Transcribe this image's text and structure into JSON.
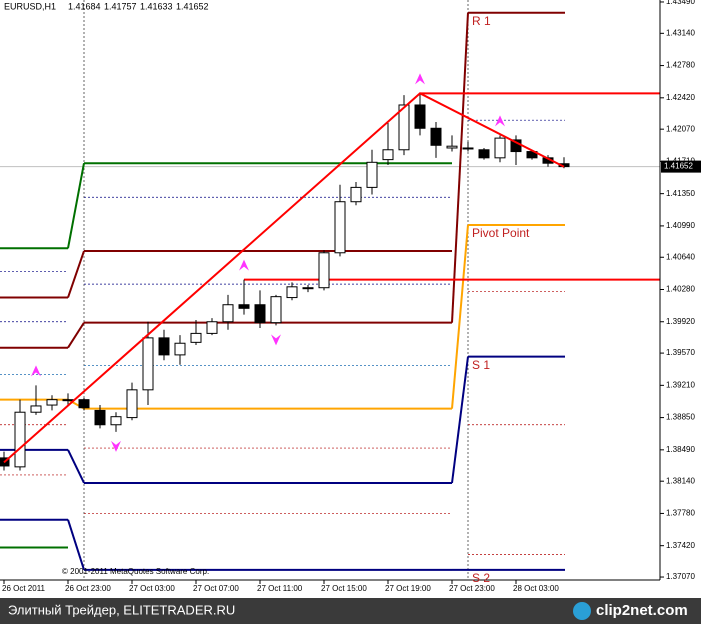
{
  "chart_data": {
    "type": "candlestick",
    "title": "EURUSD,H1",
    "header_ohlc": [
      1.41684,
      1.41757,
      1.41633,
      1.41652
    ],
    "copyright": "© 2001-2011 MetaQuotes Software Corp.",
    "categories": [
      "26 Oct 2011",
      null,
      null,
      null,
      "26 Oct 23:00",
      null,
      null,
      null,
      "27 Oct 03:00",
      null,
      null,
      null,
      "27 Oct 07:00",
      null,
      null,
      null,
      "27 Oct 11:00",
      null,
      null,
      null,
      "27 Oct 15:00",
      null,
      null,
      null,
      "27 Oct 19:00",
      null,
      null,
      null,
      "27 Oct 23:00",
      null,
      null,
      null,
      "28 Oct 03:00",
      null,
      null,
      null
    ],
    "open": [
      1.384,
      1.383,
      1.3891,
      1.3899,
      1.3905,
      1.3905,
      1.3893,
      1.3877,
      1.3885,
      1.3916,
      1.3974,
      1.3955,
      1.3969,
      1.3979,
      1.3992,
      1.4011,
      1.4011,
      1.3991,
      1.4019,
      1.403,
      1.403,
      1.4069,
      1.4126,
      1.4142,
      1.4173,
      1.4184,
      1.4234,
      1.4208,
      1.4186,
      1.4186,
      1.4184,
      1.4175,
      1.4195,
      1.4182,
      1.4175,
      1.41684
    ],
    "high": [
      1.3847,
      1.3905,
      1.3921,
      1.391,
      1.3912,
      1.3907,
      1.3899,
      1.3891,
      1.3924,
      1.3992,
      1.3983,
      1.3977,
      1.3994,
      1.3996,
      1.4022,
      1.4039,
      1.4027,
      1.4022,
      1.4036,
      1.4033,
      1.4072,
      1.4145,
      1.4148,
      1.4184,
      1.4214,
      1.4245,
      1.4247,
      1.4215,
      1.42,
      1.4193,
      1.4186,
      1.42,
      1.42,
      1.4184,
      1.4178,
      1.41757
    ],
    "low": [
      1.3826,
      1.3826,
      1.3888,
      1.3893,
      1.3899,
      1.3893,
      1.3873,
      1.3869,
      1.3882,
      1.3899,
      1.3949,
      1.3944,
      1.3966,
      1.3977,
      1.3983,
      1.4,
      1.3985,
      1.3988,
      1.4016,
      1.4025,
      1.4027,
      1.4065,
      1.4122,
      1.4134,
      1.4167,
      1.4178,
      1.42,
      1.4175,
      1.4182,
      1.4182,
      1.4173,
      1.417,
      1.4167,
      1.4173,
      1.4165,
      1.41633
    ],
    "close": [
      1.3831,
      1.3891,
      1.3898,
      1.3905,
      1.3905,
      1.3896,
      1.3877,
      1.3886,
      1.3916,
      1.3974,
      1.3955,
      1.3968,
      1.3979,
      1.3992,
      1.4011,
      1.4007,
      1.3991,
      1.402,
      1.4031,
      1.403,
      1.4069,
      1.4126,
      1.4142,
      1.417,
      1.4184,
      1.4234,
      1.4208,
      1.4189,
      1.4188,
      1.4186,
      1.4175,
      1.4197,
      1.4182,
      1.4175,
      1.4169,
      1.41652
    ],
    "ylim": [
      1.37048,
      1.43512
    ],
    "yticks": [
      {
        "value": 1.4349,
        "label": "1.43490"
      },
      {
        "value": 1.4314,
        "label": "1.43140"
      },
      {
        "value": 1.4278,
        "label": "1.42780"
      },
      {
        "value": 1.4242,
        "label": "1.42420"
      },
      {
        "value": 1.4207,
        "label": "1.42070"
      },
      {
        "value": 1.4171,
        "label": "1.41710"
      },
      {
        "value": 1.4135,
        "label": "1.41350"
      },
      {
        "value": 1.4099,
        "label": "1.40990"
      },
      {
        "value": 1.4064,
        "label": "1.40640"
      },
      {
        "value": 1.4028,
        "label": "1.40280"
      },
      {
        "value": 1.3992,
        "label": "1.39920"
      },
      {
        "value": 1.3957,
        "label": "1.39570"
      },
      {
        "value": 1.3921,
        "label": "1.39210"
      },
      {
        "value": 1.3885,
        "label": "1.38850"
      },
      {
        "value": 1.3849,
        "label": "1.38490"
      },
      {
        "value": 1.3814,
        "label": "1.38140"
      },
      {
        "value": 1.3778,
        "label": "1.37780"
      },
      {
        "value": 1.3742,
        "label": "1.37420"
      },
      {
        "value": 1.3707,
        "label": "1.37070"
      }
    ],
    "current_price": 1.41652,
    "levels": [
      {
        "color": "#007000",
        "values": [
          1.4074,
          1.4169,
          null
        ]
      },
      {
        "color": "#800000",
        "values": [
          1.4019,
          1.4071,
          null
        ]
      },
      {
        "color": "#800000",
        "values": [
          1.3963,
          1.3991,
          1.4337
        ],
        "label": "R 1"
      },
      {
        "color": "#ffa500",
        "values": [
          1.3905,
          1.3895,
          1.41
        ],
        "label": "Pivot Point"
      },
      {
        "color": "#000080",
        "values": [
          1.3849,
          1.3812,
          1.3953
        ],
        "label": "S 1"
      },
      {
        "color": "#000080",
        "values": [
          1.3771,
          1.3715,
          1.3715
        ],
        "label": "S 2"
      },
      {
        "color": "#007000",
        "values": [
          1.374,
          null,
          null
        ]
      }
    ],
    "dashed_levels": [
      {
        "color": "#000080",
        "values": [
          1.4048,
          1.4131,
          1.4217
        ]
      },
      {
        "color": "#000080",
        "values": [
          1.3992,
          1.4034,
          null
        ]
      },
      {
        "color": "#1e6eb4",
        "values": [
          1.3933,
          1.3943,
          null
        ]
      },
      {
        "color": "#b00000",
        "values": [
          1.3877,
          1.3851,
          1.4026
        ]
      },
      {
        "color": "#b00000",
        "values": [
          1.3821,
          1.3778,
          1.3877
        ]
      },
      {
        "color": "#b00000",
        "values": [
          null,
          null,
          1.3732
        ]
      }
    ],
    "zigzag": {
      "color": "#ff0000",
      "x": [
        0,
        26,
        35
      ],
      "values": [
        1.3835,
        1.4247,
        1.4165
      ]
    },
    "hlines": {
      "color": "#ff0000",
      "values": [
        1.4039,
        1.4247
      ]
    },
    "fractals_up": {
      "color": "#ff33ff",
      "x": [
        2,
        15,
        26,
        31
      ],
      "values": [
        1.3921,
        1.4039,
        1.4247,
        1.42
      ]
    },
    "fractals_down": {
      "color": "#ff33ff",
      "x": [
        7,
        17
      ],
      "values": [
        1.3869,
        1.3988
      ]
    }
  },
  "footer": {
    "left": "Элитный Трейдер, ELITETRADER.RU",
    "logo": "clip2net.com"
  }
}
